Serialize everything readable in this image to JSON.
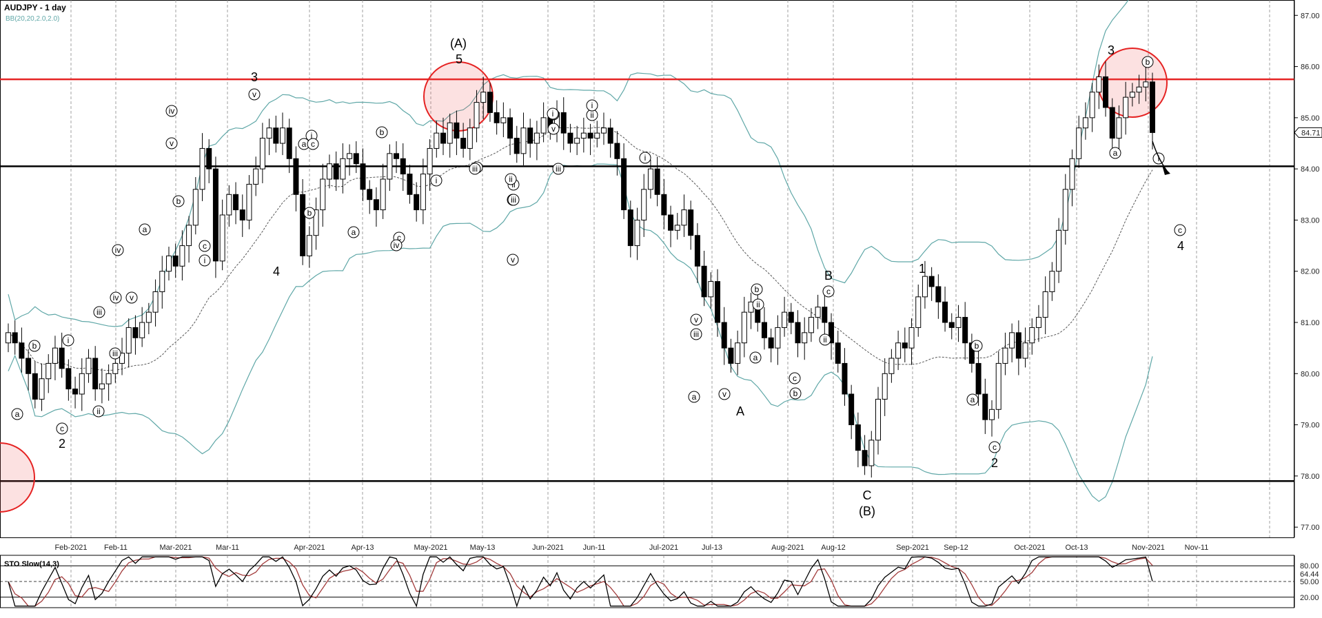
{
  "chart_data": {
    "type": "candlestick",
    "title": "AUDJPY - 1 day",
    "indicator_bb": "BB(20,20,2.0,2.0)",
    "price_axis": {
      "ticks": [
        "87.00",
        "86.00",
        "85.00",
        "84.00",
        "83.00",
        "82.00",
        "81.00",
        "80.00",
        "79.00",
        "78.00",
        "77.00"
      ],
      "ylim": [
        76.8,
        87.3
      ],
      "current_price": "84.71"
    },
    "time_axis": {
      "ticks": [
        "Feb-2021",
        "Feb-11",
        "Mar-2021",
        "Mar-11",
        "Apr-2021",
        "Apr-13",
        "May-2021",
        "May-13",
        "Jun-2021",
        "Jun-11",
        "Jul-2021",
        "Jul-13",
        "Aug-2021",
        "Aug-12",
        "Sep-2021",
        "Sep-12",
        "Oct-2021",
        "Oct-13",
        "Nov-2021",
        "Nov-11"
      ]
    },
    "horizontal_levels": [
      {
        "price": 85.75,
        "color": "#e52222"
      },
      {
        "price": 84.05,
        "color": "#000000"
      },
      {
        "price": 77.9,
        "color": "#000000"
      }
    ],
    "candles_close": [
      80.8,
      80.6,
      80.3,
      80.0,
      79.5,
      79.9,
      80.2,
      80.5,
      80.1,
      79.7,
      79.6,
      80.0,
      80.3,
      79.7,
      79.8,
      80.0,
      80.2,
      80.4,
      80.9,
      80.7,
      81.0,
      81.2,
      81.6,
      82.0,
      82.3,
      82.1,
      82.5,
      82.9,
      83.6,
      84.4,
      84.0,
      82.2,
      83.1,
      83.5,
      83.2,
      83.0,
      83.7,
      84.0,
      84.6,
      84.8,
      84.5,
      84.8,
      84.2,
      83.5,
      82.3,
      82.7,
      83.2,
      83.8,
      84.1,
      83.8,
      84.2,
      84.3,
      84.1,
      83.6,
      83.4,
      83.2,
      83.8,
      84.3,
      84.2,
      83.9,
      83.5,
      83.2,
      83.9,
      84.4,
      84.7,
      84.5,
      84.9,
      84.6,
      84.4,
      84.8,
      85.3,
      85.5,
      85.1,
      84.9,
      85.0,
      84.6,
      84.3,
      84.8,
      84.5,
      84.7,
      85.0,
      84.8,
      85.1,
      84.7,
      84.5,
      84.6,
      84.7,
      84.6,
      84.7,
      84.8,
      84.5,
      84.2,
      83.2,
      82.5,
      83.0,
      83.6,
      84.0,
      83.5,
      83.1,
      82.8,
      82.9,
      83.2,
      82.7,
      82.1,
      81.5,
      81.8,
      81.0,
      80.5,
      80.2,
      80.6,
      81.2,
      81.4,
      81.0,
      80.7,
      80.5,
      80.9,
      81.2,
      81.0,
      80.6,
      80.8,
      81.1,
      81.3,
      81.0,
      80.6,
      80.2,
      79.6,
      79.0,
      78.5,
      78.2,
      78.7,
      79.5,
      80.0,
      80.3,
      80.6,
      80.5,
      80.9,
      81.5,
      81.9,
      81.7,
      81.4,
      81.0,
      80.9,
      81.1,
      80.6,
      80.2,
      79.6,
      79.1,
      79.3,
      80.2,
      80.5,
      80.8,
      80.3,
      80.6,
      80.9,
      81.1,
      81.6,
      82.0,
      82.8,
      83.6,
      84.2,
      84.8,
      85.0,
      85.5,
      85.8,
      85.2,
      84.6,
      85.0,
      85.4,
      85.5,
      85.6,
      85.7,
      84.71
    ],
    "wave_labels": [
      "2",
      "3",
      "4",
      "(A)",
      "5",
      "A",
      "B",
      "C",
      "(B)",
      "1",
      "2",
      "3",
      "4"
    ],
    "circled_labels": [
      "a",
      "b",
      "c",
      "i",
      "ii",
      "iii",
      "iv",
      "v"
    ],
    "stochastic": {
      "name": "STO Slow(14,3)",
      "ticks": [
        "80.00",
        "64.44",
        "50.00",
        "20.00"
      ],
      "current": "64.44"
    }
  },
  "colors": {
    "bollinger": "#5fa7a7",
    "resistance": "#e52222",
    "support": "#000000",
    "highlight_fill": "rgba(240,90,90,0.18)",
    "sto_fast": "#000000",
    "sto_slow": "#a23b3b",
    "signal_green": "#1fa51f",
    "signal_red": "#c81e1e"
  }
}
